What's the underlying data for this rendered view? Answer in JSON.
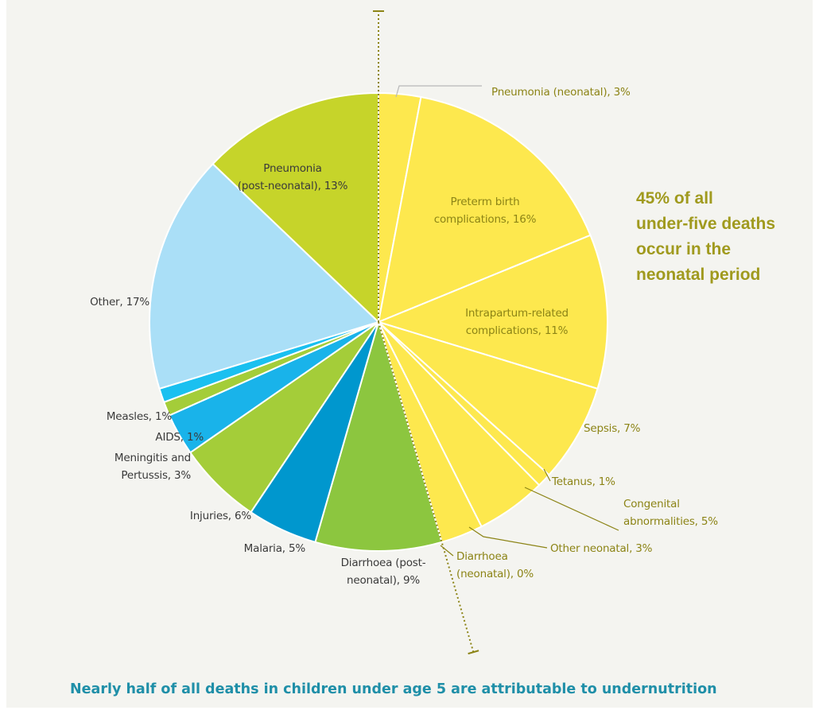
{
  "chart_data": {
    "type": "pie",
    "start_angle_deg": 0,
    "direction": "clockwise",
    "slices": [
      {
        "label": "Pneumonia (neonatal), 3%",
        "value": 3,
        "period": "neonatal",
        "color": "#fde84e"
      },
      {
        "label": "Preterm birth complications, 16%",
        "value": 16,
        "period": "neonatal",
        "color": "#fde84e"
      },
      {
        "label": "Intrapartum-related complications, 11%",
        "value": 11,
        "period": "neonatal",
        "color": "#fde84e"
      },
      {
        "label": "Sepsis, 7%",
        "value": 7,
        "period": "neonatal",
        "color": "#fde84e"
      },
      {
        "label": "Tetanus, 1%",
        "value": 1,
        "period": "neonatal",
        "color": "#fde84e"
      },
      {
        "label": "Congenital abnormalities, 5%",
        "value": 5,
        "period": "neonatal",
        "color": "#fde84e"
      },
      {
        "label": "Other neonatal, 3%",
        "value": 3,
        "period": "neonatal",
        "color": "#fde84e"
      },
      {
        "label": "Diarrhoea (neonatal), 0%",
        "value": 0,
        "period": "neonatal",
        "color": "#fde84e"
      },
      {
        "label": "Diarrhoea (post-neonatal), 9%",
        "value": 9,
        "period": "post-neonatal",
        "color": "#8cc63f"
      },
      {
        "label": "Malaria, 5%",
        "value": 5,
        "period": "post-neonatal",
        "color": "#0097ce"
      },
      {
        "label": "Injuries, 6%",
        "value": 6,
        "period": "post-neonatal",
        "color": "#a4cd39"
      },
      {
        "label": "Meningitis and Pertussis, 3%",
        "value": 3,
        "period": "post-neonatal",
        "color": "#19b3ea"
      },
      {
        "label": "AIDS, 1%",
        "value": 1,
        "period": "post-neonatal",
        "color": "#a4cd39"
      },
      {
        "label": "Measles, 1%",
        "value": 1,
        "period": "post-neonatal",
        "color": "#1ac0f0"
      },
      {
        "label": "Other, 17%",
        "value": 17,
        "period": "post-neonatal",
        "color": "#aadff7"
      },
      {
        "label": "Pneumonia (post-neonatal), 13%",
        "value": 13,
        "period": "post-neonatal",
        "color": "#c6d42a"
      }
    ],
    "annotation_lines": [
      "45% of all",
      "under-five deaths",
      "occur in the",
      "neonatal period"
    ],
    "footer": "Nearly half of all deaths in children under age 5  are attributable to undernutrition"
  },
  "colors": {
    "neonatal_label": "#8c8416",
    "post_neonatal_label": "#3a3a3a",
    "annotation": "#a09a1e",
    "footer": "#1f8fa8",
    "divider": "#8c8416",
    "background": "#f4f4f0"
  }
}
